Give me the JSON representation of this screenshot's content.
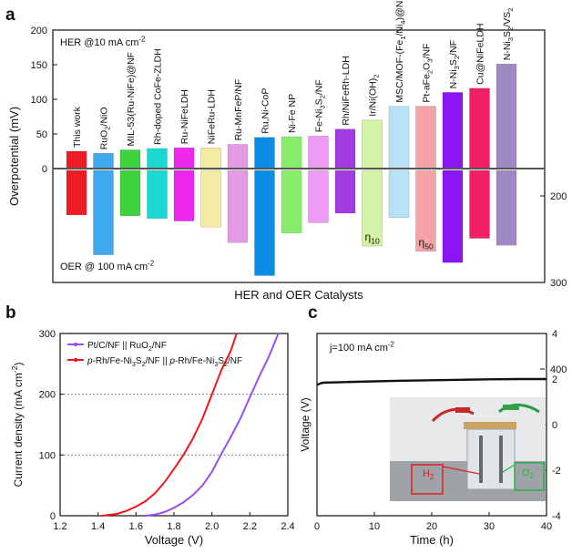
{
  "panels": {
    "a": {
      "letter": "a"
    },
    "b": {
      "letter": "b"
    },
    "c": {
      "letter": "c"
    }
  },
  "photo": {
    "h2_label": "H",
    "h2_sub": "2",
    "o2_label": "O",
    "o2_sub": "2"
  },
  "chart_data": [
    {
      "panel": "a",
      "type": "bar",
      "title": "",
      "xlabel": "HER and OER Catalysts",
      "ylabel": "Overpotential (mV)",
      "annotations": {
        "her_label": "HER @10 mA cm",
        "her_sup": "-2",
        "oer_label": "OER @ 100 mA cm",
        "oer_sup": "-2",
        "eta10_label": "η",
        "eta10_sub": "10",
        "eta50_label": "η",
        "eta50_sub": "50"
      },
      "left_axis": {
        "label": "Overpotential (mV)",
        "ylim": [
          -100,
          200
        ],
        "ticks": [
          0,
          50,
          100,
          150,
          200
        ]
      },
      "right_axis": {
        "ylim": [
          150,
          400
        ],
        "ticks": [
          200,
          300,
          400
        ]
      },
      "catalysts": [
        {
          "name": "This work",
          "label_parts": [
            {
              "t": "This work"
            }
          ],
          "color": "#ee1c25",
          "her": 25,
          "oer": 222
        },
        {
          "name": "RuO2/NiO",
          "label_parts": [
            {
              "t": "RuO"
            },
            {
              "t": "2",
              "s": "sub"
            },
            {
              "t": "/NiO"
            }
          ],
          "color": "#3fa8ee",
          "her": 22,
          "oer": 268
        },
        {
          "name": "MIL-53(Ru-NiFe)@NF",
          "label_parts": [
            {
              "t": "MIL-53(Ru-NiFe)@NF"
            }
          ],
          "color": "#3ed33e",
          "her": 27,
          "oer": 223
        },
        {
          "name": "Rh-doped CoFe-ZLDH",
          "label_parts": [
            {
              "t": "Rh-doped CoFe-ZLDH"
            }
          ],
          "color": "#1cd8d2",
          "her": 29,
          "oer": 226
        },
        {
          "name": "Ru-NiFeLDH",
          "label_parts": [
            {
              "t": "Ru-NiFeLDH"
            }
          ],
          "color": "#ee28ee",
          "her": 30,
          "oer": 229
        },
        {
          "name": "NiFeRu-LDH",
          "label_parts": [
            {
              "t": "NiFeRu-LDH"
            }
          ],
          "color": "#f2eca3",
          "her": 30,
          "oer": 236
        },
        {
          "name": "Ru-MnFeP/NF",
          "label_parts": [
            {
              "t": "Ru-MnFeP/NF"
            }
          ],
          "color": "#e59ae5",
          "her": 35,
          "oer": 254
        },
        {
          "name": "Ru,Ni-CoP",
          "label_parts": [
            {
              "t": "Ru,Ni-CoP"
            }
          ],
          "color": "#0a8be6",
          "her": 45,
          "oer": 292
        },
        {
          "name": "Ni-Fe NP",
          "label_parts": [
            {
              "t": "Ni-Fe NP"
            }
          ],
          "color": "#87ee6b",
          "her": 46,
          "oer": 243
        },
        {
          "name": "Fe-Ni3S2/NF",
          "label_parts": [
            {
              "t": "Fe-Ni"
            },
            {
              "t": "3",
              "s": "sub"
            },
            {
              "t": "S"
            },
            {
              "t": "2",
              "s": "sub"
            },
            {
              "t": "/NF"
            }
          ],
          "color": "#f09bf3",
          "her": 47,
          "oer": 231
        },
        {
          "name": "Rh/NiFeRh-LDH",
          "label_parts": [
            {
              "t": "Rh/NiFeRh-LDH"
            }
          ],
          "color": "#a33de3",
          "her": 57,
          "oer": 220
        },
        {
          "name": "Ir/Ni(OH)2",
          "label_parts": [
            {
              "t": "Ir/Ni(OH)"
            },
            {
              "t": "2",
              "s": "sub"
            }
          ],
          "color": "#d4f2a5",
          "her": 70,
          "oer": 258
        },
        {
          "name": "MSC/MOF-(Fe1/Ni4)@NF",
          "label_parts": [
            {
              "t": "MSC/MOF-(Fe"
            },
            {
              "t": "1",
              "s": "sub"
            },
            {
              "t": "/Ni"
            },
            {
              "t": "4",
              "s": "sub"
            },
            {
              "t": ")@NF"
            }
          ],
          "color": "#b7e1f5",
          "her": 90,
          "oer": 225
        },
        {
          "name": "Pt-aFe2O3/NF",
          "label_parts": [
            {
              "t": "Pt-aFe"
            },
            {
              "t": "2",
              "s": "sub"
            },
            {
              "t": "O"
            },
            {
              "t": "3",
              "s": "sub"
            },
            {
              "t": "/NF"
            }
          ],
          "color": "#f6a3a8",
          "her": 90,
          "oer": 264
        },
        {
          "name": "N-Ni3S2/NF",
          "label_parts": [
            {
              "t": "N-Ni"
            },
            {
              "t": "3",
              "s": "sub"
            },
            {
              "t": "S"
            },
            {
              "t": "2",
              "s": "sub"
            },
            {
              "t": "/NF"
            }
          ],
          "color": "#8a16f3",
          "her": 110,
          "oer": 277
        },
        {
          "name": "Cu@NiFeLDH",
          "label_parts": [
            {
              "t": "Cu@NiFeLDH"
            }
          ],
          "color": "#f01f67",
          "her": 116,
          "oer": 249
        },
        {
          "name": "N-Ni3S2/VS2",
          "label_parts": [
            {
              "t": "N-Ni"
            },
            {
              "t": "3",
              "s": "sub"
            },
            {
              "t": "S"
            },
            {
              "t": "2",
              "s": "sub"
            },
            {
              "t": "/VS"
            },
            {
              "t": "2",
              "s": "sub"
            }
          ],
          "color": "#a089c3",
          "her": 151,
          "oer": 257
        }
      ]
    },
    {
      "panel": "b",
      "type": "line",
      "title": "",
      "xlabel": "Voltage (V)",
      "ylabel_parts": [
        {
          "t": "Current density (mA cm"
        },
        {
          "t": "-2",
          "s": "sup"
        },
        {
          "t": ")"
        }
      ],
      "xlim": [
        1.2,
        2.4
      ],
      "ylim": [
        0,
        300
      ],
      "x_ticks": [
        "1.2",
        "1.4",
        "1.6",
        "1.8",
        "2.0",
        "2.2",
        "2.4"
      ],
      "y_ticks": [
        "0",
        "100",
        "200",
        "300"
      ],
      "reference_lines": [
        100,
        200
      ],
      "series": [
        {
          "name": "Pt/C/NF || RuO2/NF",
          "legend_parts": [
            {
              "t": "Pt/C/NF ||  RuO"
            },
            {
              "t": "2",
              "s": "sub"
            },
            {
              "t": "/NF"
            }
          ],
          "color": "#9a4ef2",
          "points": [
            [
              1.65,
              0
            ],
            [
              1.7,
              2
            ],
            [
              1.75,
              6
            ],
            [
              1.8,
              13
            ],
            [
              1.85,
              22
            ],
            [
              1.9,
              34
            ],
            [
              1.95,
              50
            ],
            [
              2.0,
              72
            ],
            [
              2.05,
              102
            ],
            [
              2.1,
              130
            ],
            [
              2.15,
              160
            ],
            [
              2.2,
              195
            ],
            [
              2.25,
              230
            ],
            [
              2.3,
              262
            ],
            [
              2.35,
              300
            ]
          ]
        },
        {
          "name": "p-Rh/Fe-Ni3S2/NF || p-Rh/Fe-Ni3S2/NF",
          "legend_parts": [
            {
              "t": "p",
              "s": "it"
            },
            {
              "t": "-Rh/Fe-Ni"
            },
            {
              "t": "3",
              "s": "sub"
            },
            {
              "t": "S"
            },
            {
              "t": "2",
              "s": "sub"
            },
            {
              "t": "/NF || "
            },
            {
              "t": "p",
              "s": "it"
            },
            {
              "t": "-Rh/Fe-Ni"
            },
            {
              "t": "3",
              "s": "sub"
            },
            {
              "t": "S"
            },
            {
              "t": "2",
              "s": "sub"
            },
            {
              "t": "/NF"
            }
          ],
          "color": "#f01818",
          "points": [
            [
              1.42,
              0
            ],
            [
              1.5,
              3
            ],
            [
              1.55,
              8
            ],
            [
              1.6,
              15
            ],
            [
              1.65,
              24
            ],
            [
              1.7,
              37
            ],
            [
              1.75,
              55
            ],
            [
              1.8,
              77
            ],
            [
              1.85,
              100
            ],
            [
              1.9,
              127
            ],
            [
              1.95,
              160
            ],
            [
              2.0,
              200
            ],
            [
              2.05,
              240
            ],
            [
              2.1,
              272
            ],
            [
              2.13,
              300
            ]
          ]
        }
      ]
    },
    {
      "panel": "c",
      "type": "line",
      "title": "",
      "xlabel": "Time (h)",
      "ylabel": "Voltage (V)",
      "annotation_parts": [
        {
          "t": "j=100 mA cm"
        },
        {
          "t": "-2",
          "s": "sup"
        }
      ],
      "xlim": [
        0,
        40
      ],
      "ylim": [
        -4,
        4
      ],
      "x_ticks": [
        "0",
        "10",
        "20",
        "30",
        "40"
      ],
      "y_ticks": [
        "-4",
        "-2",
        "0",
        "2",
        "4"
      ],
      "series": [
        {
          "name": "",
          "color": "#111111",
          "points": [
            [
              0,
              1.75
            ],
            [
              1,
              1.84
            ],
            [
              5,
              1.87
            ],
            [
              10,
              1.9
            ],
            [
              15,
              1.93
            ],
            [
              20,
              1.95
            ],
            [
              25,
              1.97
            ],
            [
              30,
              1.99
            ],
            [
              35,
              2.0
            ],
            [
              40,
              2.0
            ]
          ]
        }
      ]
    }
  ]
}
